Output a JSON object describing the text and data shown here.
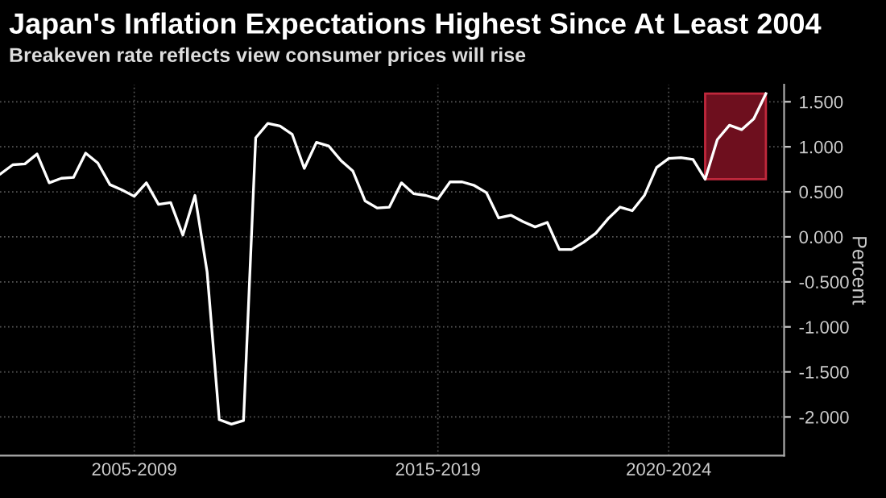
{
  "chart_data": {
    "type": "line",
    "title": "Japan's Inflation Expectations Highest Since At Least 2004",
    "subtitle": "Breakeven rate reflects view consumer prices will rise",
    "ylabel": "Percent",
    "categories": [
      null,
      null,
      null,
      null,
      null,
      null,
      null,
      null,
      null,
      null,
      null,
      "2005-2009",
      null,
      null,
      null,
      null,
      null,
      null,
      null,
      null,
      null,
      null,
      null,
      null,
      null,
      null,
      null,
      null,
      null,
      null,
      null,
      null,
      null,
      null,
      null,
      null,
      "2015-2019",
      null,
      null,
      null,
      null,
      null,
      null,
      null,
      null,
      null,
      null,
      null,
      null,
      null,
      null,
      null,
      null,
      null,
      null,
      "2020-2024",
      null,
      null,
      null,
      null,
      null,
      null,
      null,
      null
    ],
    "series": [
      {
        "color": "#ffffff",
        "values": [
          0.7,
          0.8,
          0.81,
          0.92,
          0.6,
          0.65,
          0.66,
          0.93,
          0.82,
          0.58,
          0.52,
          0.45,
          0.6,
          0.36,
          0.38,
          0.02,
          0.46,
          -0.39,
          -2.03,
          -2.08,
          -2.04,
          1.1,
          1.26,
          1.23,
          1.14,
          0.76,
          1.05,
          1.01,
          0.85,
          0.73,
          0.4,
          0.32,
          0.33,
          0.6,
          0.48,
          0.46,
          0.42,
          0.61,
          0.61,
          0.57,
          0.49,
          0.21,
          0.24,
          0.17,
          0.11,
          0.16,
          -0.14,
          -0.14,
          -0.06,
          0.04,
          0.2,
          0.33,
          0.29,
          0.46,
          0.77,
          0.87,
          0.88,
          0.86,
          0.64,
          1.08,
          1.24,
          1.19,
          1.31,
          1.59
        ]
      }
    ],
    "ylim": [
      -2.43,
      1.69
    ],
    "yticks": [
      {
        "value": 1.5,
        "label": "1.500"
      },
      {
        "value": 1.0,
        "label": "1.000"
      },
      {
        "value": 0.5,
        "label": "0.500"
      },
      {
        "value": 0.0,
        "label": "0.000"
      },
      {
        "value": -0.5,
        "label": "-0.500"
      },
      {
        "value": -1.0,
        "label": "-1.000"
      },
      {
        "value": -1.5,
        "label": "-1.500"
      },
      {
        "value": -2.0,
        "label": "-2.000"
      }
    ],
    "grid": true
  }
}
